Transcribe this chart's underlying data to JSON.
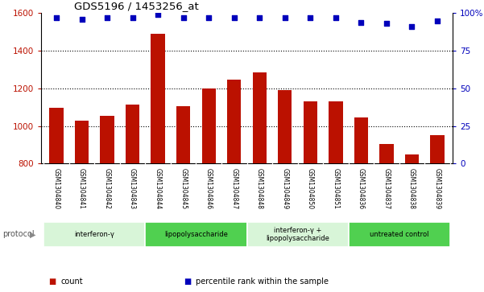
{
  "title": "GDS5196 / 1453256_at",
  "samples": [
    "GSM1304840",
    "GSM1304841",
    "GSM1304842",
    "GSM1304843",
    "GSM1304844",
    "GSM1304845",
    "GSM1304846",
    "GSM1304847",
    "GSM1304848",
    "GSM1304849",
    "GSM1304850",
    "GSM1304851",
    "GSM1304836",
    "GSM1304837",
    "GSM1304838",
    "GSM1304839"
  ],
  "counts": [
    1095,
    1030,
    1055,
    1115,
    1490,
    1105,
    1200,
    1245,
    1285,
    1190,
    1130,
    1130,
    1045,
    905,
    850,
    950
  ],
  "percentiles": [
    97,
    96,
    97,
    97,
    99,
    97,
    97,
    97,
    97,
    97,
    97,
    97,
    94,
    93,
    91,
    95
  ],
  "ylim_left": [
    800,
    1600
  ],
  "ylim_right": [
    0,
    100
  ],
  "yticks_left": [
    800,
    1000,
    1200,
    1400,
    1600
  ],
  "yticks_right": [
    0,
    25,
    50,
    75,
    100
  ],
  "bar_color": "#bb1100",
  "dot_color": "#0000bb",
  "grid_color": "#000000",
  "bg_color": "#ffffff",
  "tick_label_bg": "#c8c8c8",
  "protocol_groups": [
    {
      "label": "interferon-γ",
      "start": 0,
      "end": 3,
      "color": "#d8f5d8"
    },
    {
      "label": "lipopolysaccharide",
      "start": 4,
      "end": 7,
      "color": "#50d050"
    },
    {
      "label": "interferon-γ +\nlipopolysaccharide",
      "start": 8,
      "end": 11,
      "color": "#d8f5d8"
    },
    {
      "label": "untreated control",
      "start": 12,
      "end": 15,
      "color": "#50d050"
    }
  ],
  "legend_items": [
    {
      "color": "#bb1100",
      "label": "count"
    },
    {
      "color": "#0000bb",
      "label": "percentile rank within the sample"
    }
  ],
  "protocol_label": "protocol"
}
